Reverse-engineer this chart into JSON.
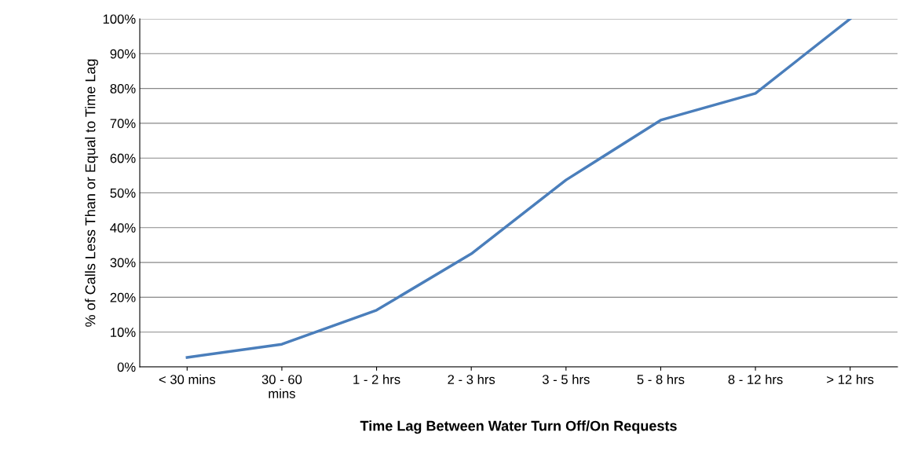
{
  "chart_data": {
    "type": "line",
    "categories": [
      "< 30 mins",
      "30 - 60\nmins",
      "1 - 2 hrs",
      "2 - 3 hrs",
      "3 - 5 hrs",
      "5 - 8 hrs",
      "8 - 12 hrs",
      "> 12 hrs"
    ],
    "series": [
      {
        "color": "#4a7ebb",
        "values": [
          2.7,
          6.5,
          16.3,
          32.5,
          53.7,
          70.9,
          78.6,
          100
        ]
      }
    ],
    "xlabel": "Time Lag Between Water Turn Off/On Requests",
    "ylabel": "% of Calls Less Than or Equal to Time Lag",
    "ylim": [
      0,
      100
    ],
    "yticks": [
      {
        "value": 0,
        "label": "0%"
      },
      {
        "value": 10,
        "label": "10%"
      },
      {
        "value": 20,
        "label": "20%"
      },
      {
        "value": 30,
        "label": "30%"
      },
      {
        "value": 40,
        "label": "40%"
      },
      {
        "value": 50,
        "label": "50%"
      },
      {
        "value": 60,
        "label": "60%"
      },
      {
        "value": 70,
        "label": "70%"
      },
      {
        "value": 80,
        "label": "80%"
      },
      {
        "value": 90,
        "label": "90%"
      },
      {
        "value": 100,
        "label": "100%"
      }
    ],
    "grid": "y",
    "marker": "none",
    "line_style": "solid",
    "legend": false
  }
}
